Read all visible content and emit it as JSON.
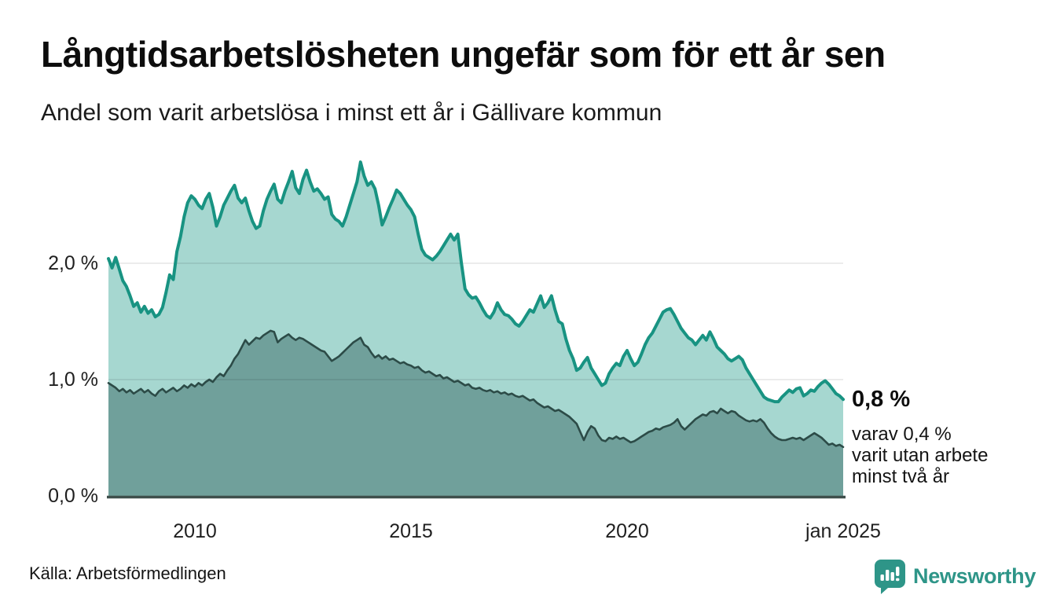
{
  "header": {
    "title": "Långtidsarbetslösheten ungefär som för ett år sen",
    "subtitle": "Andel som varit arbetslösa i minst ett år i Gällivare kommun"
  },
  "annotation": {
    "value": "0,8 %",
    "detail": "varav 0,4 %\nvarit utan arbete\nminst två år"
  },
  "footer": {
    "source": "Källa: Arbetsförmedlingen",
    "brand": "Newsworthy"
  },
  "colors": {
    "line_one_year": "#189382",
    "fill_one_year": "#a6d7d0",
    "line_two_years": "#2c4b47",
    "fill_two_years": "#70a09b",
    "gridline": "rgba(0,0,0,0.10)",
    "axis": "#3f4f4c",
    "brand_teal": "#2e9588"
  },
  "chart_data": {
    "type": "area",
    "title": "Långtidsarbetslösheten ungefär som för ett år sen",
    "subtitle": "Andel som varit arbetslösa i minst ett år i Gällivare kommun",
    "x_unit": "month",
    "x_start": "2008-01",
    "x_end": "2025-01",
    "ylim": [
      0,
      2.95
    ],
    "grid": "horizontal",
    "legend_position": "none",
    "yticks": [
      {
        "value": 0,
        "label": "0,0 %"
      },
      {
        "value": 1,
        "label": "1,0 %"
      },
      {
        "value": 2,
        "label": "2,0 %"
      }
    ],
    "xticks": [
      {
        "t": 2010,
        "label": "2010"
      },
      {
        "t": 2015,
        "label": "2015"
      },
      {
        "t": 2020,
        "label": "2020"
      },
      {
        "t": 2025,
        "label": "jan 2025"
      }
    ],
    "series": [
      {
        "name": "Andel som varit arbetslösa minst ett år",
        "end_label": "0,8 %",
        "color": "#189382",
        "fill": "#a6d7d0",
        "values": [
          2.04,
          1.96,
          2.05,
          1.95,
          1.85,
          1.8,
          1.72,
          1.63,
          1.66,
          1.58,
          1.63,
          1.57,
          1.6,
          1.54,
          1.56,
          1.62,
          1.75,
          1.9,
          1.86,
          2.1,
          2.23,
          2.4,
          2.52,
          2.58,
          2.55,
          2.5,
          2.47,
          2.55,
          2.6,
          2.48,
          2.32,
          2.4,
          2.5,
          2.56,
          2.62,
          2.67,
          2.56,
          2.52,
          2.56,
          2.45,
          2.36,
          2.3,
          2.32,
          2.45,
          2.55,
          2.62,
          2.68,
          2.55,
          2.52,
          2.62,
          2.7,
          2.79,
          2.65,
          2.6,
          2.72,
          2.8,
          2.7,
          2.62,
          2.64,
          2.6,
          2.55,
          2.57,
          2.42,
          2.38,
          2.36,
          2.32,
          2.4,
          2.5,
          2.6,
          2.7,
          2.87,
          2.75,
          2.67,
          2.7,
          2.64,
          2.5,
          2.33,
          2.4,
          2.48,
          2.55,
          2.63,
          2.6,
          2.55,
          2.5,
          2.46,
          2.4,
          2.25,
          2.12,
          2.07,
          2.05,
          2.03,
          2.06,
          2.1,
          2.15,
          2.2,
          2.25,
          2.2,
          2.25,
          2.0,
          1.78,
          1.73,
          1.7,
          1.71,
          1.66,
          1.6,
          1.55,
          1.53,
          1.58,
          1.66,
          1.6,
          1.56,
          1.55,
          1.52,
          1.48,
          1.46,
          1.5,
          1.55,
          1.6,
          1.58,
          1.65,
          1.72,
          1.62,
          1.66,
          1.72,
          1.6,
          1.5,
          1.48,
          1.35,
          1.25,
          1.18,
          1.08,
          1.1,
          1.15,
          1.19,
          1.1,
          1.05,
          1.0,
          0.95,
          0.97,
          1.05,
          1.1,
          1.14,
          1.12,
          1.2,
          1.25,
          1.18,
          1.12,
          1.15,
          1.22,
          1.3,
          1.36,
          1.4,
          1.46,
          1.52,
          1.58,
          1.6,
          1.61,
          1.56,
          1.5,
          1.44,
          1.4,
          1.36,
          1.34,
          1.3,
          1.34,
          1.38,
          1.34,
          1.41,
          1.35,
          1.28,
          1.25,
          1.22,
          1.18,
          1.16,
          1.18,
          1.2,
          1.17,
          1.1,
          1.05,
          1.0,
          0.95,
          0.9,
          0.85,
          0.83,
          0.82,
          0.81,
          0.81,
          0.85,
          0.88,
          0.91,
          0.89,
          0.92,
          0.93,
          0.86,
          0.88,
          0.91,
          0.9,
          0.94,
          0.97,
          0.99,
          0.96,
          0.92,
          0.88,
          0.86,
          0.83
        ]
      },
      {
        "name": "varav varit utan arbete minst två år",
        "end_label": "0,4 %",
        "color": "#2c4b47",
        "fill": "#70a09b",
        "values": [
          0.97,
          0.95,
          0.93,
          0.9,
          0.92,
          0.89,
          0.91,
          0.88,
          0.9,
          0.92,
          0.89,
          0.91,
          0.88,
          0.86,
          0.9,
          0.92,
          0.89,
          0.91,
          0.93,
          0.9,
          0.92,
          0.95,
          0.93,
          0.96,
          0.94,
          0.97,
          0.95,
          0.98,
          1.0,
          0.98,
          1.02,
          1.05,
          1.03,
          1.08,
          1.12,
          1.18,
          1.22,
          1.28,
          1.34,
          1.3,
          1.33,
          1.36,
          1.35,
          1.38,
          1.4,
          1.42,
          1.41,
          1.32,
          1.35,
          1.37,
          1.39,
          1.36,
          1.34,
          1.36,
          1.35,
          1.33,
          1.31,
          1.29,
          1.27,
          1.25,
          1.24,
          1.2,
          1.16,
          1.18,
          1.2,
          1.23,
          1.26,
          1.29,
          1.32,
          1.34,
          1.36,
          1.3,
          1.28,
          1.23,
          1.19,
          1.21,
          1.18,
          1.2,
          1.17,
          1.18,
          1.16,
          1.14,
          1.15,
          1.13,
          1.12,
          1.1,
          1.11,
          1.08,
          1.06,
          1.07,
          1.05,
          1.03,
          1.04,
          1.01,
          1.02,
          1.0,
          0.98,
          0.99,
          0.97,
          0.95,
          0.96,
          0.93,
          0.92,
          0.93,
          0.91,
          0.9,
          0.91,
          0.89,
          0.9,
          0.88,
          0.89,
          0.87,
          0.88,
          0.86,
          0.85,
          0.86,
          0.84,
          0.82,
          0.83,
          0.8,
          0.78,
          0.76,
          0.77,
          0.75,
          0.73,
          0.74,
          0.72,
          0.7,
          0.68,
          0.65,
          0.62,
          0.55,
          0.48,
          0.55,
          0.6,
          0.58,
          0.52,
          0.48,
          0.47,
          0.5,
          0.49,
          0.51,
          0.49,
          0.5,
          0.48,
          0.46,
          0.47,
          0.49,
          0.51,
          0.53,
          0.55,
          0.56,
          0.58,
          0.57,
          0.59,
          0.6,
          0.61,
          0.63,
          0.66,
          0.6,
          0.57,
          0.6,
          0.63,
          0.66,
          0.68,
          0.7,
          0.69,
          0.72,
          0.73,
          0.71,
          0.75,
          0.73,
          0.71,
          0.73,
          0.72,
          0.69,
          0.67,
          0.65,
          0.64,
          0.65,
          0.64,
          0.66,
          0.63,
          0.58,
          0.54,
          0.51,
          0.49,
          0.48,
          0.48,
          0.49,
          0.5,
          0.49,
          0.5,
          0.48,
          0.5,
          0.52,
          0.54,
          0.52,
          0.5,
          0.47,
          0.44,
          0.45,
          0.43,
          0.44,
          0.42
        ]
      }
    ]
  }
}
